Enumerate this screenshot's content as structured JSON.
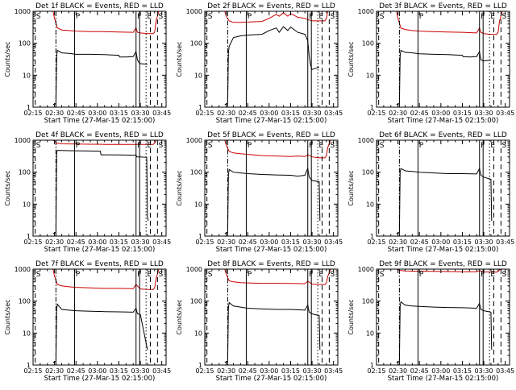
{
  "colors": {
    "events": "#000000",
    "lld": "#cc0000",
    "axis": "#000000"
  },
  "common": {
    "xlabel": "Start Time (27-Mar-15 02:15:00)",
    "ylabel": "Counts/sec",
    "x_ticks": [
      "02:15",
      "02:30",
      "02:45",
      "03:00",
      "03:15",
      "03:30",
      "03:45"
    ],
    "x_range_minutes": [
      0,
      93
    ],
    "y_ticks": [
      "1",
      "10",
      "100",
      "1000"
    ],
    "y_range": [
      1,
      1000
    ],
    "y_scale": "log",
    "markers": [
      {
        "label": "S",
        "x": 1.5,
        "style": "dashed"
      },
      {
        "label": "P",
        "x": 29,
        "style": "solid"
      },
      {
        "label": "F",
        "x": 72,
        "style": "solid"
      },
      {
        "label": "E",
        "x": 79,
        "style": "dotted"
      },
      {
        "label": "S",
        "x": 87,
        "style": "dashed"
      }
    ],
    "extra_lines": [
      {
        "x": 16,
        "style": "dashdot"
      },
      {
        "x": 74.5,
        "style": "solid"
      },
      {
        "x": 82,
        "style": "dashed"
      }
    ]
  },
  "chart_data": [
    {
      "type": "line",
      "title": "Det  1f BLACK = Events, RED = LLD",
      "series": [
        {
          "name": "Events",
          "x": [
            14,
            16,
            16.5,
            17,
            20,
            25,
            30,
            40,
            50,
            55,
            60,
            60.5,
            65,
            70,
            72,
            73,
            74,
            75,
            80
          ],
          "y": [
            1.2,
            1.3,
            40,
            60,
            50,
            48,
            45,
            45,
            44,
            43,
            42,
            37,
            37,
            38,
            55,
            30,
            25,
            23,
            22
          ]
        },
        {
          "name": "LLD",
          "x": [
            14,
            15,
            17,
            20,
            25,
            30,
            40,
            50,
            60,
            70,
            72,
            73,
            75,
            80,
            84,
            85,
            86,
            88
          ],
          "y": [
            1000,
            600,
            300,
            260,
            250,
            240,
            230,
            230,
            225,
            220,
            300,
            220,
            210,
            200,
            200,
            220,
            500,
            1000
          ]
        }
      ]
    },
    {
      "type": "line",
      "title": "Det  2f BLACK = Events, RED = LLD",
      "series": [
        {
          "name": "Events",
          "x": [
            14,
            16,
            16.5,
            17,
            20,
            25,
            30,
            40,
            45,
            50,
            52,
            55,
            58,
            60,
            65,
            70,
            72,
            73,
            74,
            75,
            80
          ],
          "y": [
            1.2,
            1.3,
            50,
            80,
            150,
            170,
            180,
            190,
            250,
            300,
            220,
            330,
            250,
            320,
            220,
            190,
            120,
            40,
            20,
            15,
            18
          ]
        },
        {
          "name": "LLD",
          "x": [
            14,
            15,
            17,
            20,
            25,
            30,
            40,
            45,
            50,
            52,
            55,
            58,
            60,
            65,
            70,
            72,
            75,
            80,
            84,
            85,
            86,
            88
          ],
          "y": [
            1000,
            700,
            500,
            450,
            450,
            460,
            480,
            600,
            800,
            700,
            900,
            700,
            850,
            650,
            600,
            550,
            500,
            500,
            500,
            600,
            1000,
            1000
          ]
        }
      ]
    },
    {
      "type": "line",
      "title": "Det  3f BLACK = Events, RED = LLD",
      "series": [
        {
          "name": "Events",
          "x": [
            14,
            16,
            16.5,
            17,
            20,
            25,
            30,
            40,
            50,
            55,
            60,
            60.5,
            65,
            70,
            72,
            73,
            75,
            80
          ],
          "y": [
            1.2,
            1.3,
            40,
            60,
            52,
            50,
            47,
            45,
            44,
            43,
            42,
            38,
            37,
            38,
            55,
            30,
            28,
            30
          ]
        },
        {
          "name": "LLD",
          "x": [
            14,
            15,
            17,
            20,
            25,
            30,
            40,
            50,
            60,
            70,
            72,
            73,
            75,
            80,
            84,
            85,
            86,
            88
          ],
          "y": [
            1000,
            600,
            300,
            270,
            250,
            240,
            230,
            225,
            220,
            210,
            300,
            220,
            200,
            190,
            190,
            220,
            500,
            1000
          ]
        }
      ]
    },
    {
      "type": "line",
      "title": "Det  4f BLACK = Events, RED = LLD",
      "series": [
        {
          "name": "Events",
          "x": [
            14,
            16,
            16.5,
            17,
            25,
            40,
            47,
            47.5,
            60,
            70,
            72,
            72.5,
            74,
            75,
            79.5,
            80,
            80.5
          ],
          "y": [
            1.2,
            1.3,
            450,
            480,
            470,
            460,
            455,
            350,
            345,
            340,
            345,
            300,
            300,
            300,
            290,
            4,
            3
          ]
        },
        {
          "name": "LLD",
          "x": [
            14,
            15,
            16,
            17,
            20,
            30,
            40,
            50,
            60,
            70,
            80,
            84,
            85,
            86,
            88
          ],
          "y": [
            1000,
            950,
            850,
            800,
            770,
            760,
            750,
            740,
            740,
            740,
            740,
            740,
            800,
            1000,
            1000
          ]
        }
      ]
    },
    {
      "type": "line",
      "title": "Det  5f BLACK = Events, RED = LLD",
      "series": [
        {
          "name": "Events",
          "x": [
            14,
            16,
            16.5,
            17,
            20,
            25,
            30,
            40,
            50,
            60,
            65,
            70,
            72,
            73,
            75,
            80,
            80.5
          ],
          "y": [
            1.2,
            1.3,
            80,
            120,
            100,
            95,
            90,
            85,
            82,
            80,
            75,
            80,
            130,
            70,
            55,
            50,
            3
          ]
        },
        {
          "name": "LLD",
          "x": [
            14,
            15,
            17,
            20,
            25,
            30,
            40,
            50,
            60,
            65,
            70,
            72,
            75,
            80,
            84,
            85,
            86,
            88
          ],
          "y": [
            1000,
            700,
            450,
            400,
            380,
            360,
            330,
            320,
            310,
            320,
            310,
            350,
            300,
            280,
            280,
            320,
            600,
            1000
          ]
        }
      ]
    },
    {
      "type": "line",
      "title": "Det  6f BLACK = Events, RED = LLD",
      "series": [
        {
          "name": "Events",
          "x": [
            14,
            16,
            16.5,
            17,
            20,
            25,
            30,
            40,
            50,
            60,
            70,
            72,
            73,
            75,
            80,
            80.5
          ],
          "y": [
            1.2,
            1.3,
            100,
            130,
            110,
            105,
            100,
            95,
            90,
            90,
            88,
            130,
            80,
            70,
            60,
            3
          ]
        }
      ]
    },
    {
      "type": "line",
      "title": "Det  7f BLACK = Events, RED = LLD",
      "series": [
        {
          "name": "Events",
          "x": [
            14,
            16,
            16.5,
            17,
            20,
            25,
            30,
            40,
            50,
            60,
            70,
            72,
            73,
            75,
            80
          ],
          "y": [
            1.2,
            1.3,
            60,
            80,
            55,
            52,
            50,
            48,
            47,
            46,
            45,
            60,
            40,
            38,
            3
          ]
        },
        {
          "name": "LLD",
          "x": [
            14,
            15,
            17,
            20,
            25,
            30,
            40,
            50,
            60,
            70,
            72,
            75,
            80,
            84,
            85,
            86,
            88
          ],
          "y": [
            1000,
            600,
            330,
            300,
            280,
            270,
            260,
            250,
            250,
            245,
            330,
            240,
            230,
            230,
            260,
            500,
            1000
          ]
        }
      ]
    },
    {
      "type": "line",
      "title": "Det  8f BLACK = Events, RED = LLD",
      "series": [
        {
          "name": "Events",
          "x": [
            14,
            16,
            16.5,
            17,
            20,
            25,
            30,
            40,
            50,
            60,
            70,
            72,
            73,
            75,
            80,
            80.5
          ],
          "y": [
            1.2,
            1.3,
            60,
            90,
            70,
            65,
            60,
            57,
            55,
            55,
            52,
            75,
            45,
            40,
            35,
            3
          ]
        },
        {
          "name": "LLD",
          "x": [
            14,
            15,
            17,
            20,
            25,
            30,
            40,
            50,
            60,
            70,
            72,
            75,
            80,
            84,
            85,
            86,
            88
          ],
          "y": [
            1000,
            700,
            430,
            400,
            380,
            370,
            360,
            360,
            355,
            350,
            420,
            340,
            330,
            330,
            370,
            600,
            1000
          ]
        }
      ]
    },
    {
      "type": "line",
      "title": "Det  9f BLACK = Events, RED = LLD",
      "series": [
        {
          "name": "Events",
          "x": [
            14,
            16,
            16.5,
            17,
            20,
            25,
            30,
            40,
            50,
            60,
            70,
            72,
            73,
            75,
            80,
            80.5
          ],
          "y": [
            1.2,
            1.3,
            70,
            95,
            75,
            70,
            68,
            65,
            63,
            62,
            60,
            85,
            55,
            50,
            45,
            3
          ]
        },
        {
          "name": "LLD",
          "x": [
            14,
            15,
            17,
            20,
            30,
            40,
            50,
            60,
            70,
            72,
            75,
            80,
            84,
            85,
            86,
            88
          ],
          "y": [
            1000,
            950,
            900,
            880,
            860,
            850,
            840,
            830,
            830,
            900,
            820,
            810,
            800,
            850,
            950,
            1000
          ]
        }
      ]
    }
  ]
}
